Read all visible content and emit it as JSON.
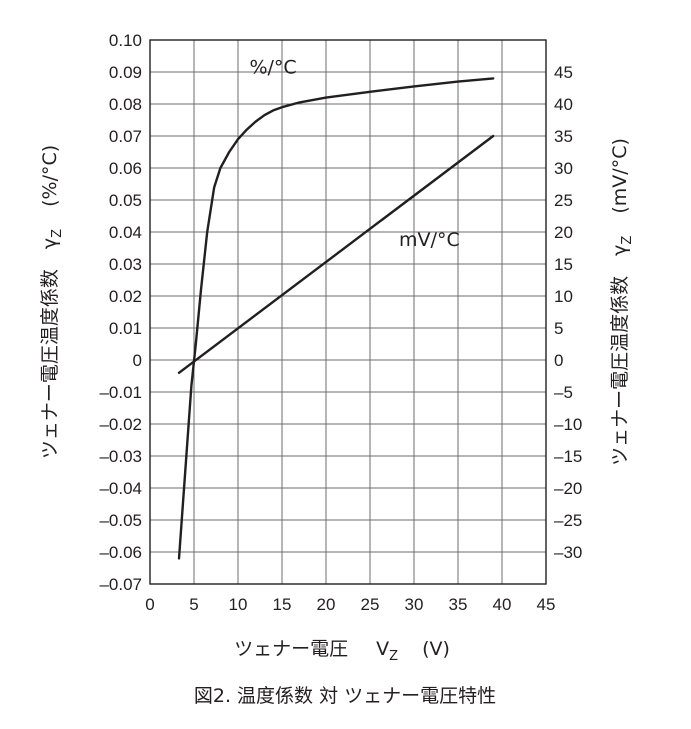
{
  "chart_data": {
    "type": "line",
    "caption": "図2. 温度係数 対 ツェナー電圧特性",
    "x_axis": {
      "label_main": "ツェナー電圧",
      "label_symbol": "V",
      "label_sub": "Z",
      "label_unit": "(V)",
      "range": [
        0,
        45
      ],
      "ticks": [
        0,
        5,
        10,
        15,
        20,
        25,
        30,
        35,
        40,
        45
      ],
      "tick_labels": [
        "0",
        "5",
        "10",
        "15",
        "20",
        "25",
        "30",
        "35",
        "40",
        "45"
      ]
    },
    "y_left": {
      "label_main": "ツェナー電圧温度係数",
      "label_symbol": "γ",
      "label_sub": "Z",
      "label_unit": "(%/°C)",
      "range": [
        -0.07,
        0.1
      ],
      "ticks": [
        0.1,
        0.09,
        0.08,
        0.07,
        0.06,
        0.05,
        0.04,
        0.03,
        0.02,
        0.01,
        0,
        -0.01,
        -0.02,
        -0.03,
        -0.04,
        -0.05,
        -0.06,
        -0.07
      ],
      "tick_labels": [
        "0.10",
        "0.09",
        "0.08",
        "0.07",
        "0.06",
        "0.05",
        "0.04",
        "0.03",
        "0.02",
        "0.01",
        "0",
        "–0.01",
        "–0.02",
        "–0.03",
        "–0.04",
        "–0.05",
        "–0.06",
        "–0.07"
      ]
    },
    "y_right": {
      "label_main": "ツェナー電圧温度係数",
      "label_symbol": "γ",
      "label_sub": "Z",
      "label_unit": "(mV/°C)",
      "range": [
        -35,
        50
      ],
      "ticks": [
        45,
        40,
        35,
        30,
        25,
        20,
        15,
        10,
        5,
        0,
        -5,
        -10,
        -15,
        -20,
        -25,
        -30
      ],
      "tick_labels": [
        "45",
        "40",
        "35",
        "30",
        "25",
        "20",
        "15",
        "10",
        "5",
        "0",
        "–5",
        "–10",
        "–15",
        "–20",
        "–25",
        "–30"
      ]
    },
    "grid": true,
    "series": [
      {
        "name": "%/°C",
        "axis": "left",
        "x": [
          3.3,
          4.0,
          4.7,
          5.2,
          5.8,
          6.5,
          7.3,
          8.0,
          9.0,
          10.0,
          11.0,
          12.0,
          13.0,
          14.0,
          15.0,
          17.0,
          20.0,
          25.0,
          30.0,
          35.0,
          39.0
        ],
        "y": [
          -0.062,
          -0.035,
          -0.008,
          0.005,
          0.022,
          0.04,
          0.054,
          0.06,
          0.065,
          0.069,
          0.072,
          0.0745,
          0.0765,
          0.078,
          0.079,
          0.0805,
          0.082,
          0.0838,
          0.0855,
          0.087,
          0.088
        ]
      },
      {
        "name": "mV/°C",
        "axis": "right",
        "x": [
          3.3,
          39.0
        ],
        "y": [
          -2.0,
          35.0
        ]
      }
    ]
  }
}
